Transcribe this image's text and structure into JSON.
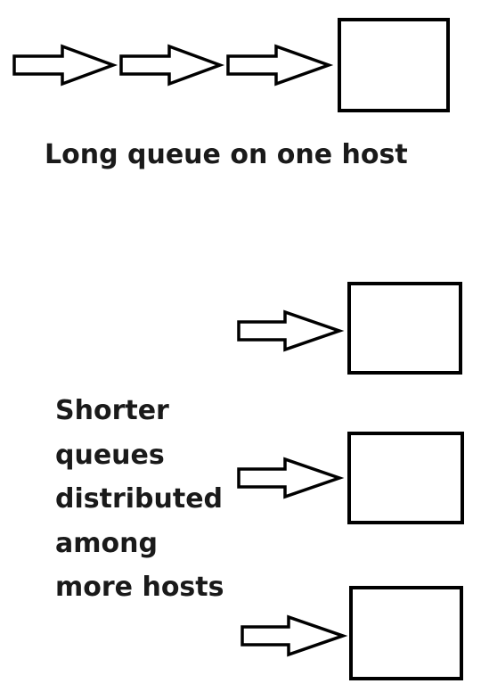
{
  "single_host": {
    "queue_icon": "hollow-right-arrow",
    "host_icon": "square-box",
    "queue_length": 3,
    "caption": "Long queue on one host"
  },
  "multiple_hosts": {
    "queue_icon": "hollow-right-arrow",
    "host_icon": "square-box",
    "host_count": 3,
    "caption_lines": [
      "Shorter",
      "queues",
      "distributed",
      "among",
      "more hosts"
    ]
  },
  "colors": {
    "stroke": "#000000",
    "text": "#1a1a1a",
    "background": "#ffffff"
  }
}
